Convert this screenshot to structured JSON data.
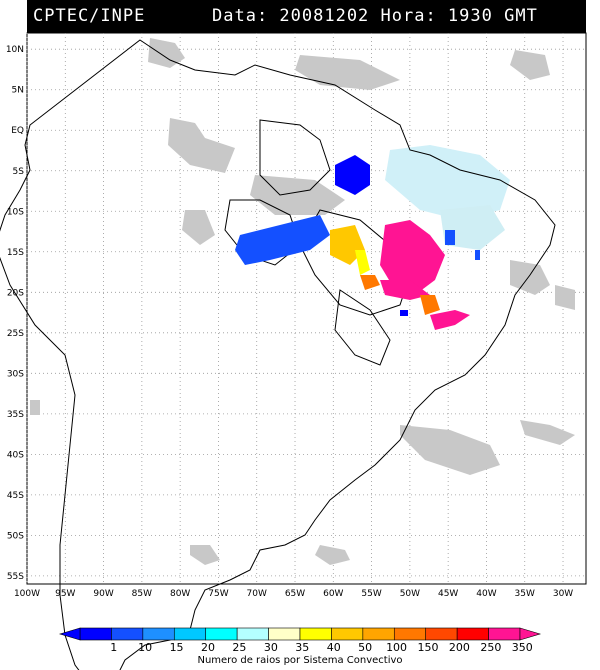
{
  "header": {
    "source": "CPTEC/INPE",
    "info": "Data: 20081202 Hora: 1930 GMT"
  },
  "map": {
    "lat_labels": [
      "10N",
      "5N",
      "EQ",
      "5S",
      "10S",
      "15S",
      "20S",
      "25S",
      "30S",
      "35S",
      "40S",
      "45S",
      "50S",
      "55S"
    ],
    "lon_labels": [
      "100W",
      "95W",
      "90W",
      "85W",
      "80W",
      "75W",
      "70W",
      "65W",
      "60W",
      "55W",
      "50W",
      "45W",
      "40W",
      "35W",
      "30W"
    ],
    "lon_range": [
      -100,
      -27
    ],
    "lat_range": [
      -56,
      12
    ],
    "grid": "dotted",
    "cloud_color": "#c8c8c8"
  },
  "colorbar": {
    "title": "Numero de raios por Sistema Convectivo",
    "labels": [
      "1",
      "10",
      "15",
      "20",
      "25",
      "30",
      "35",
      "40",
      "50",
      "100",
      "150",
      "200",
      "250",
      "350"
    ],
    "colors": [
      "#0000ff",
      "#1450ff",
      "#1e90ff",
      "#00c8ff",
      "#00ffff",
      "#b4ffff",
      "#ffffc8",
      "#ffff00",
      "#ffc800",
      "#ffa500",
      "#ff7800",
      "#ff4800",
      "#ff0000",
      "#ff1493"
    ]
  }
}
